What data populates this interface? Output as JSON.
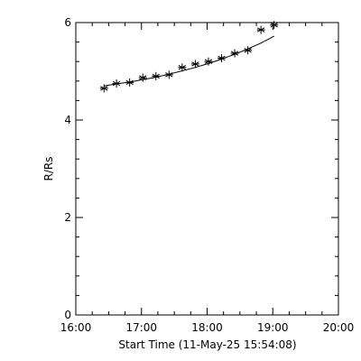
{
  "chart_data": {
    "type": "scatter",
    "xlabel": "Start Time (11-May-25 15:54:08)",
    "ylabel": "R/Rs",
    "x_unit": "hours",
    "xlim": [
      16.0,
      20.0
    ],
    "ylim": [
      0,
      6
    ],
    "x_ticks": [
      {
        "value": 16,
        "label": "16:00"
      },
      {
        "value": 17,
        "label": "17:00"
      },
      {
        "value": 18,
        "label": "18:00"
      },
      {
        "value": 19,
        "label": "19:00"
      },
      {
        "value": 20,
        "label": "20:00"
      }
    ],
    "y_ticks": [
      {
        "value": 0,
        "label": "0"
      },
      {
        "value": 2,
        "label": "2"
      },
      {
        "value": 4,
        "label": "4"
      },
      {
        "value": 6,
        "label": "6"
      }
    ],
    "grid": false,
    "series": [
      {
        "marker": "asterisk",
        "x": [
          16.43,
          16.62,
          16.82,
          17.02,
          17.22,
          17.42,
          17.62,
          17.82,
          18.02,
          18.22,
          18.42,
          18.62,
          18.82,
          19.02
        ],
        "y": [
          4.65,
          4.75,
          4.77,
          4.87,
          4.9,
          4.93,
          5.08,
          5.15,
          5.2,
          5.27,
          5.37,
          5.43,
          5.85,
          5.95
        ]
      }
    ],
    "fit": {
      "style": "solid",
      "x": [
        16.43,
        16.62,
        16.82,
        17.02,
        17.22,
        17.42,
        17.62,
        17.82,
        18.02,
        18.22,
        18.42,
        18.62,
        18.82,
        19.02
      ],
      "y": [
        4.7,
        4.74,
        4.78,
        4.83,
        4.88,
        4.94,
        5.01,
        5.08,
        5.16,
        5.25,
        5.35,
        5.46,
        5.58,
        5.72
      ]
    },
    "colors": {
      "axis": "#000000",
      "marks": "#000000",
      "background": "#ffffff"
    }
  }
}
